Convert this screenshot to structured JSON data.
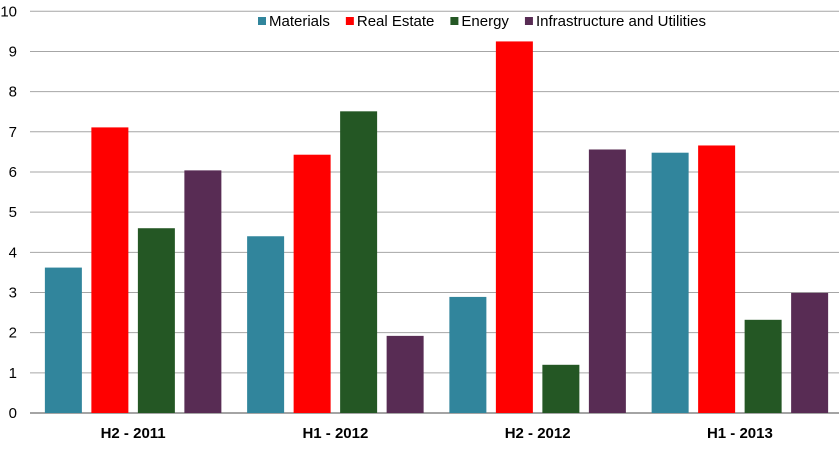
{
  "chart_data": {
    "type": "bar",
    "title": "",
    "xlabel": "",
    "ylabel": "",
    "ylim": [
      0,
      10
    ],
    "yticks": [
      "0",
      "1",
      "2",
      "3",
      "4",
      "5",
      "6",
      "7",
      "8",
      "9",
      "10"
    ],
    "grid": true,
    "legend_position": "top",
    "categories": [
      "H2 - 2011",
      "H1 - 2012",
      "H2 - 2012",
      "H1 - 2013"
    ],
    "series": [
      {
        "name": "Materials",
        "color": "#31859C",
        "values": [
          3.62,
          4.4,
          2.89,
          6.48
        ]
      },
      {
        "name": "Real Estate",
        "color": "#FF0000",
        "values": [
          7.11,
          6.43,
          9.25,
          6.66
        ]
      },
      {
        "name": "Energy",
        "color": "#245724",
        "values": [
          4.6,
          7.51,
          1.2,
          2.32
        ]
      },
      {
        "name": "Infrastructure and Utilities",
        "color": "#582C54",
        "values": [
          6.04,
          1.92,
          6.56,
          2.99
        ]
      }
    ]
  }
}
